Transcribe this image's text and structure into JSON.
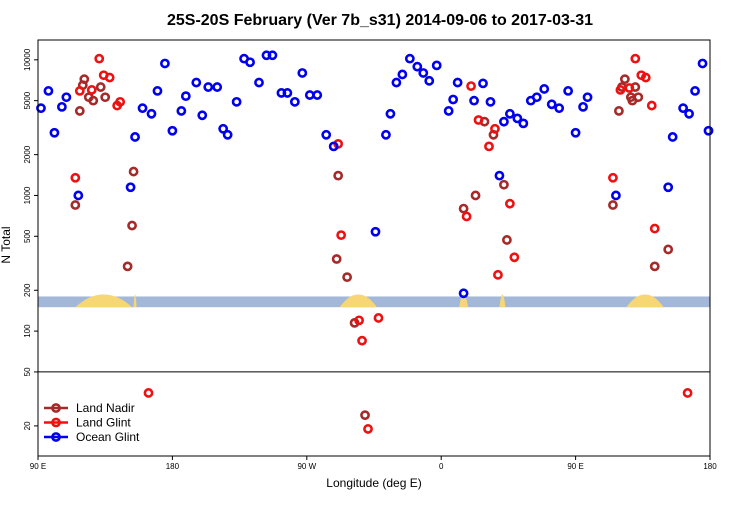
{
  "chart_data": {
    "type": "scatter",
    "title": "25S-20S February (Ver 7b_s31)   2014-09-06 to 2017-03-31",
    "xlabel": "Longitude (deg E)",
    "ylabel": "N Total",
    "y_scale": "log",
    "xlim": [
      90,
      540
    ],
    "ylim": [
      12,
      14000
    ],
    "x_ticks": [
      {
        "value": 90,
        "label": "90 E"
      },
      {
        "value": 180,
        "label": "180"
      },
      {
        "value": 270,
        "label": "90 W"
      },
      {
        "value": 360,
        "label": "0"
      },
      {
        "value": 450,
        "label": "90 E"
      },
      {
        "value": 540,
        "label": "180"
      }
    ],
    "y_ticks": [
      {
        "value": 20,
        "label": "20"
      },
      {
        "value": 50,
        "label": "50"
      },
      {
        "value": 100,
        "label": "100"
      },
      {
        "value": 200,
        "label": "200"
      },
      {
        "value": 500,
        "label": "500"
      },
      {
        "value": 1000,
        "label": "1000"
      },
      {
        "value": 2000,
        "label": "2000"
      },
      {
        "value": 5000,
        "label": "5000"
      },
      {
        "value": 10000,
        "label": "10000"
      }
    ],
    "reference_line_y": 50,
    "map_strip": {
      "y_range": [
        150,
        180
      ],
      "ocean_color": "#a3b8d8",
      "land_color": "#f7d774",
      "land_segments": [
        {
          "start": 115,
          "end": 153
        },
        {
          "start": 154,
          "end": 156
        },
        {
          "start": 292,
          "end": 317
        },
        {
          "start": 372,
          "end": 378
        },
        {
          "start": 399,
          "end": 403
        },
        {
          "start": 484,
          "end": 509
        }
      ]
    },
    "legend": {
      "position": "bottom-left",
      "entries": [
        "Land Nadir",
        "Land Glint",
        "Ocean Glint"
      ]
    },
    "series": [
      {
        "name": "Land Nadir",
        "color": "#a52a2a",
        "points": [
          {
            "x": 115,
            "y": 850
          },
          {
            "x": 118,
            "y": 4200
          },
          {
            "x": 120,
            "y": 6500
          },
          {
            "x": 121,
            "y": 7200
          },
          {
            "x": 124,
            "y": 5300
          },
          {
            "x": 127,
            "y": 5000
          },
          {
            "x": 132,
            "y": 6300
          },
          {
            "x": 135,
            "y": 5300
          },
          {
            "x": 150,
            "y": 300
          },
          {
            "x": 153,
            "y": 600
          },
          {
            "x": 154,
            "y": 1500
          },
          {
            "x": 290,
            "y": 340
          },
          {
            "x": 291,
            "y": 1400
          },
          {
            "x": 297,
            "y": 250
          },
          {
            "x": 302,
            "y": 115
          },
          {
            "x": 309,
            "y": 24
          },
          {
            "x": 375,
            "y": 800
          },
          {
            "x": 383,
            "y": 1000
          },
          {
            "x": 389,
            "y": 3500
          },
          {
            "x": 395,
            "y": 2800
          },
          {
            "x": 402,
            "y": 1200
          },
          {
            "x": 404,
            "y": 470
          },
          {
            "x": 475,
            "y": 850
          },
          {
            "x": 479,
            "y": 4200
          },
          {
            "x": 481,
            "y": 6300
          },
          {
            "x": 483,
            "y": 7200
          },
          {
            "x": 487,
            "y": 5300
          },
          {
            "x": 488,
            "y": 5000
          },
          {
            "x": 490,
            "y": 6300
          },
          {
            "x": 492,
            "y": 5300
          },
          {
            "x": 503,
            "y": 300
          },
          {
            "x": 512,
            "y": 400
          }
        ]
      },
      {
        "name": "Land Glint",
        "color": "#ee1111",
        "points": [
          {
            "x": 115,
            "y": 1350
          },
          {
            "x": 118,
            "y": 5900
          },
          {
            "x": 126,
            "y": 6000
          },
          {
            "x": 131,
            "y": 10200
          },
          {
            "x": 134,
            "y": 7700
          },
          {
            "x": 138,
            "y": 7400
          },
          {
            "x": 143,
            "y": 4600
          },
          {
            "x": 145,
            "y": 4900
          },
          {
            "x": 164,
            "y": 35
          },
          {
            "x": 291,
            "y": 2400
          },
          {
            "x": 293,
            "y": 510
          },
          {
            "x": 305,
            "y": 120
          },
          {
            "x": 307,
            "y": 85
          },
          {
            "x": 311,
            "y": 19
          },
          {
            "x": 318,
            "y": 125
          },
          {
            "x": 377,
            "y": 700
          },
          {
            "x": 380,
            "y": 6400
          },
          {
            "x": 385,
            "y": 3600
          },
          {
            "x": 392,
            "y": 2300
          },
          {
            "x": 396,
            "y": 3100
          },
          {
            "x": 398,
            "y": 260
          },
          {
            "x": 406,
            "y": 870
          },
          {
            "x": 409,
            "y": 350
          },
          {
            "x": 475,
            "y": 1350
          },
          {
            "x": 480,
            "y": 6000
          },
          {
            "x": 486,
            "y": 6200
          },
          {
            "x": 490,
            "y": 10200
          },
          {
            "x": 494,
            "y": 7700
          },
          {
            "x": 497,
            "y": 7400
          },
          {
            "x": 501,
            "y": 4600
          },
          {
            "x": 503,
            "y": 570
          },
          {
            "x": 525,
            "y": 35
          }
        ]
      },
      {
        "name": "Ocean Glint",
        "color": "#0000ee",
        "points": [
          {
            "x": 92,
            "y": 4400
          },
          {
            "x": 97,
            "y": 5900
          },
          {
            "x": 101,
            "y": 2900
          },
          {
            "x": 106,
            "y": 4500
          },
          {
            "x": 109,
            "y": 5300
          },
          {
            "x": 117,
            "y": 1000
          },
          {
            "x": 152,
            "y": 1150
          },
          {
            "x": 155,
            "y": 2700
          },
          {
            "x": 160,
            "y": 4400
          },
          {
            "x": 166,
            "y": 4000
          },
          {
            "x": 170,
            "y": 5900
          },
          {
            "x": 175,
            "y": 9400
          },
          {
            "x": 180,
            "y": 3000
          },
          {
            "x": 186,
            "y": 4200
          },
          {
            "x": 189,
            "y": 5400
          },
          {
            "x": 196,
            "y": 6800
          },
          {
            "x": 200,
            "y": 3900
          },
          {
            "x": 204,
            "y": 6300
          },
          {
            "x": 210,
            "y": 6300
          },
          {
            "x": 214,
            "y": 3100
          },
          {
            "x": 217,
            "y": 2800
          },
          {
            "x": 223,
            "y": 4900
          },
          {
            "x": 228,
            "y": 10200
          },
          {
            "x": 232,
            "y": 9600
          },
          {
            "x": 238,
            "y": 6800
          },
          {
            "x": 243,
            "y": 10800
          },
          {
            "x": 247,
            "y": 10800
          },
          {
            "x": 253,
            "y": 5700
          },
          {
            "x": 257,
            "y": 5700
          },
          {
            "x": 262,
            "y": 4900
          },
          {
            "x": 267,
            "y": 8000
          },
          {
            "x": 272,
            "y": 5500
          },
          {
            "x": 277,
            "y": 5500
          },
          {
            "x": 283,
            "y": 2800
          },
          {
            "x": 288,
            "y": 2300
          },
          {
            "x": 316,
            "y": 540
          },
          {
            "x": 323,
            "y": 2800
          },
          {
            "x": 326,
            "y": 4000
          },
          {
            "x": 330,
            "y": 6800
          },
          {
            "x": 334,
            "y": 7800
          },
          {
            "x": 339,
            "y": 10200
          },
          {
            "x": 344,
            "y": 8900
          },
          {
            "x": 348,
            "y": 8000
          },
          {
            "x": 352,
            "y": 7000
          },
          {
            "x": 357,
            "y": 9100
          },
          {
            "x": 365,
            "y": 4200
          },
          {
            "x": 368,
            "y": 5100
          },
          {
            "x": 371,
            "y": 6800
          },
          {
            "x": 375,
            "y": 190
          },
          {
            "x": 382,
            "y": 5000
          },
          {
            "x": 388,
            "y": 6700
          },
          {
            "x": 393,
            "y": 4900
          },
          {
            "x": 399,
            "y": 1400
          },
          {
            "x": 402,
            "y": 3500
          },
          {
            "x": 406,
            "y": 4000
          },
          {
            "x": 411,
            "y": 3700
          },
          {
            "x": 415,
            "y": 3400
          },
          {
            "x": 420,
            "y": 5000
          },
          {
            "x": 424,
            "y": 5300
          },
          {
            "x": 429,
            "y": 6100
          },
          {
            "x": 434,
            "y": 4700
          },
          {
            "x": 439,
            "y": 4400
          },
          {
            "x": 445,
            "y": 5900
          },
          {
            "x": 450,
            "y": 2900
          },
          {
            "x": 455,
            "y": 4500
          },
          {
            "x": 458,
            "y": 5300
          },
          {
            "x": 477,
            "y": 1000
          },
          {
            "x": 512,
            "y": 1150
          },
          {
            "x": 515,
            "y": 2700
          },
          {
            "x": 522,
            "y": 4400
          },
          {
            "x": 526,
            "y": 4000
          },
          {
            "x": 530,
            "y": 5900
          },
          {
            "x": 535,
            "y": 9400
          },
          {
            "x": 539,
            "y": 3000
          }
        ]
      }
    ]
  }
}
